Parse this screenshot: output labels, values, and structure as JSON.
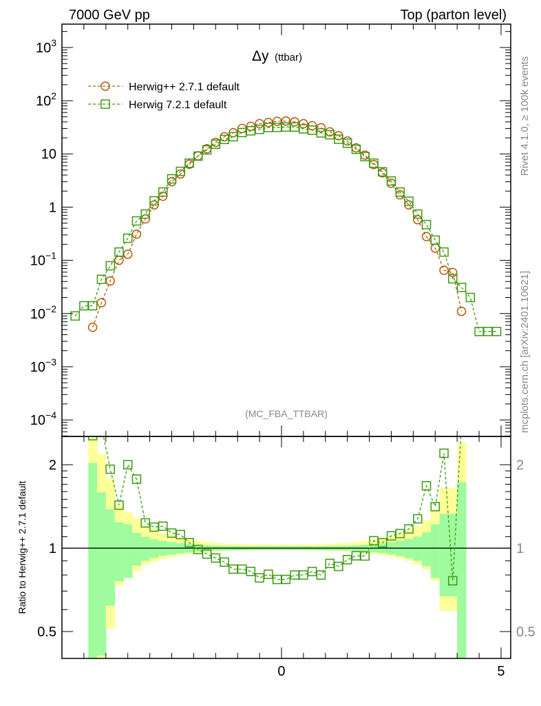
{
  "header": {
    "left": "7000 GeV pp",
    "right": "Top (parton level)"
  },
  "side_labels": {
    "rivet": "Rivet 4.1.0, ≥ 100k events",
    "mcplots": "mcplots.cern.ch [arXiv:2401.10621]"
  },
  "analysis_label": "(MC_FBA_TTBAR)",
  "colors": {
    "herwigpp": "#b35a0e",
    "herwig7": "#3a9a10",
    "band_inner": "#9efc9e",
    "band_outer": "#ffff99"
  },
  "chart_data": [
    {
      "type": "line",
      "title": "Δy",
      "title_sub": "(ttbar)",
      "xlabel": "",
      "ylabel": "",
      "yscale": "log",
      "xlim": [
        -5.0,
        5.22
      ],
      "ylim": [
        4.9e-05,
        2750
      ],
      "y_ticks": [
        {
          "value": 1000,
          "base": "10",
          "exp": "3"
        },
        {
          "value": 100,
          "base": "10",
          "exp": "2"
        },
        {
          "value": 10,
          "base": "10",
          "exp": ""
        },
        {
          "value": 1,
          "base": "1",
          "exp": ""
        },
        {
          "value": 0.1,
          "base": "10",
          "exp": "−1"
        },
        {
          "value": 0.01,
          "base": "10",
          "exp": "−2"
        },
        {
          "value": 0.001,
          "base": "10",
          "exp": "−3"
        },
        {
          "value": 0.0001,
          "base": "10",
          "exp": "−4"
        }
      ],
      "legend_position": "top-left",
      "x": [
        -4.7,
        -4.5,
        -4.3,
        -4.1,
        -3.9,
        -3.7,
        -3.5,
        -3.3,
        -3.1,
        -2.9,
        -2.7,
        -2.5,
        -2.3,
        -2.1,
        -1.9,
        -1.7,
        -1.5,
        -1.3,
        -1.1,
        -0.9,
        -0.7,
        -0.5,
        -0.3,
        -0.1,
        0.1,
        0.3,
        0.5,
        0.7,
        0.9,
        1.1,
        1.3,
        1.5,
        1.7,
        1.9,
        2.1,
        2.3,
        2.5,
        2.7,
        2.9,
        3.1,
        3.3,
        3.5,
        3.7,
        3.9,
        4.1,
        4.3,
        4.5,
        4.7,
        4.9
      ],
      "series": [
        {
          "name": "Herwig++ 2.7.1 default",
          "marker": "circle",
          "values": [
            null,
            null,
            0.0055,
            0.016,
            0.041,
            0.1,
            0.13,
            0.31,
            0.6,
            1.1,
            1.6,
            3.0,
            4.2,
            6.4,
            9.2,
            12.5,
            16.5,
            21,
            25,
            30,
            33,
            37,
            39,
            41,
            41.5,
            40,
            37,
            34,
            31,
            26,
            22,
            17.5,
            13,
            9.5,
            6.3,
            4.4,
            2.8,
            1.7,
            1.1,
            0.58,
            0.28,
            0.17,
            0.065,
            0.059,
            0.011,
            null,
            null,
            null,
            null
          ]
        },
        {
          "name": "Herwig 7.2.1 default",
          "marker": "square",
          "values": [
            0.009,
            0.014,
            0.014,
            0.044,
            0.079,
            0.143,
            0.26,
            0.55,
            0.74,
            1.31,
            1.92,
            3.4,
            4.7,
            6.7,
            9.1,
            11.9,
            15.2,
            18.7,
            21,
            25.2,
            27.2,
            28.9,
            31.4,
            31.6,
            32,
            32,
            29.6,
            28,
            24.8,
            22.9,
            18.9,
            15.9,
            12.2,
            8.9,
            6.7,
            4.6,
            3.1,
            1.92,
            1.29,
            0.74,
            0.47,
            0.24,
            0.143,
            0.045,
            0.031,
            0.02,
            0.0046,
            0.0046,
            0.0046
          ]
        }
      ]
    },
    {
      "type": "line",
      "title": "",
      "ylabel": "Ratio to Herwig++ 2.7.1 default",
      "yscale": "log",
      "ylim": [
        0.4,
        2.53
      ],
      "xlim": [
        -5.0,
        5.22
      ],
      "reference": 1,
      "y_ticks": [
        {
          "value": 2,
          "label": "2"
        },
        {
          "value": 1,
          "label": "1"
        },
        {
          "value": 0.5,
          "label": "0.5"
        }
      ],
      "x_ticks": [
        {
          "value": 0,
          "label": "0"
        },
        {
          "value": 5,
          "label": "5"
        }
      ],
      "band_x": [
        -4.3,
        -4.1,
        -3.9,
        -3.7,
        -3.5,
        -3.3,
        -3.1,
        -2.9,
        -2.7,
        -2.5,
        -2.3,
        -2.1,
        -1.9,
        -1.7,
        -1.5,
        -1.3,
        -1.1,
        -0.9,
        -0.7,
        -0.5,
        -0.3,
        -0.1,
        0.1,
        0.3,
        0.5,
        0.7,
        0.9,
        1.1,
        1.3,
        1.5,
        1.7,
        1.9,
        2.1,
        2.3,
        2.5,
        2.7,
        2.9,
        3.1,
        3.3,
        3.5,
        3.7,
        3.9,
        4.1
      ],
      "band_inner_rel_err": [
        1.03,
        0.59,
        0.38,
        0.24,
        0.22,
        0.135,
        0.1,
        0.077,
        0.062,
        0.052,
        0.043,
        0.035,
        0.028,
        0.024,
        0.021,
        0.019,
        0.018,
        0.017,
        0.016,
        0.016,
        0.016,
        0.016,
        0.016,
        0.016,
        0.016,
        0.016,
        0.017,
        0.018,
        0.019,
        0.021,
        0.024,
        0.028,
        0.034,
        0.04,
        0.05,
        0.064,
        0.08,
        0.1,
        0.14,
        0.22,
        0.33,
        0.33,
        0.73
      ],
      "band_outer_rel_err": [
        1.5,
        1.18,
        0.78,
        0.43,
        0.35,
        0.28,
        0.2,
        0.17,
        0.135,
        0.115,
        0.094,
        0.076,
        0.06,
        0.052,
        0.045,
        0.04,
        0.036,
        0.034,
        0.032,
        0.031,
        0.031,
        0.031,
        0.031,
        0.031,
        0.031,
        0.032,
        0.034,
        0.036,
        0.04,
        0.045,
        0.052,
        0.06,
        0.075,
        0.09,
        0.11,
        0.13,
        0.16,
        0.2,
        0.26,
        0.38,
        0.65,
        0.65,
        1.4
      ]
    }
  ]
}
